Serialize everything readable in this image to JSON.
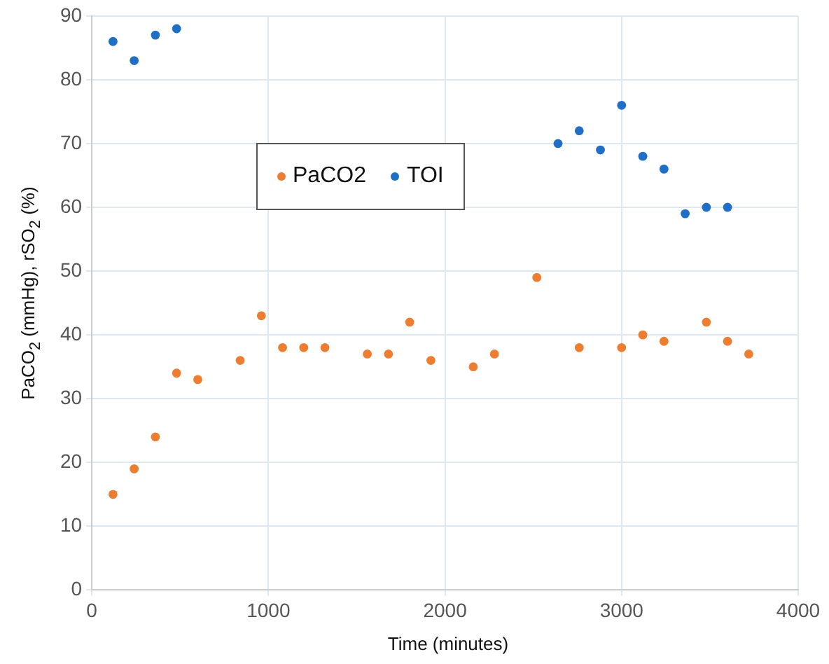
{
  "chart_data": {
    "type": "scatter",
    "xlabel": "Time (minutes)",
    "ylabel": "PaCO$_{2}$ (mmHg), rSO$_{2}$ (%)",
    "xlim": [
      0,
      4000
    ],
    "xticks": [
      0,
      1000,
      2000,
      3000,
      4000
    ],
    "ylim": [
      0,
      90
    ],
    "yticks": [
      0,
      10,
      20,
      30,
      40,
      50,
      60,
      70,
      80,
      90
    ],
    "grid": true,
    "legend": "top left",
    "marker": "circle",
    "series": [
      {
        "name": "PaCO2",
        "color": "#ed7d31",
        "x": [
          120,
          240,
          360,
          480,
          600,
          840,
          960,
          1080,
          1200,
          1320,
          1560,
          1680,
          1800,
          1920,
          2160,
          2280,
          2520,
          2760,
          3000,
          3120,
          3240,
          3480,
          3600,
          3720
        ],
        "values": [
          15,
          19,
          24,
          34,
          33,
          36,
          43,
          38,
          38,
          38,
          37,
          37,
          42,
          36,
          35,
          37,
          49,
          38,
          38,
          40,
          39,
          42,
          39,
          37
        ]
      },
      {
        "name": "TOI",
        "color": "#1f6fc6",
        "x": [
          120,
          240,
          360,
          480,
          2640,
          2760,
          2880,
          3000,
          3120,
          3240,
          3360,
          3480,
          3600
        ],
        "values": [
          86,
          83,
          87,
          88,
          70,
          72,
          69,
          76,
          68,
          66,
          59,
          60,
          60
        ]
      }
    ]
  }
}
